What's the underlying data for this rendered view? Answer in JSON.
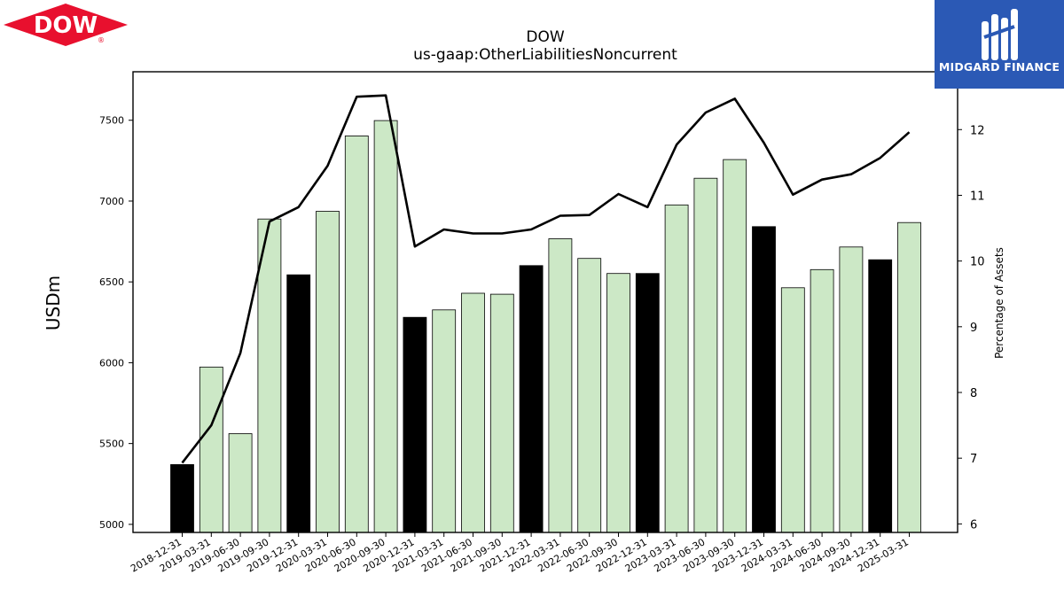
{
  "title": "DOW",
  "subtitle": "us-gaap:OtherLiabilitiesNoncurrent",
  "logos": {
    "left": {
      "text": "DOW",
      "mark": "®",
      "color": "#e8102e"
    },
    "right": {
      "name": "MIDGARD FINANCE",
      "background": "#2b59b5"
    }
  },
  "colors": {
    "bar_q4": "#000000",
    "bar_other": "#cce8c6",
    "line": "#000000"
  },
  "chart_data": {
    "type": "bar",
    "categories": [
      "2018-12-31",
      "2019-03-31",
      "2019-06-30",
      "2019-09-30",
      "2019-12-31",
      "2020-03-31",
      "2020-06-30",
      "2020-09-30",
      "2020-12-31",
      "2021-03-31",
      "2021-06-30",
      "2021-09-30",
      "2021-12-31",
      "2022-03-31",
      "2022-06-30",
      "2022-09-30",
      "2022-12-31",
      "2023-03-31",
      "2023-06-30",
      "2023-09-30",
      "2023-12-31",
      "2024-03-31",
      "2024-06-30",
      "2024-09-30",
      "2024-12-31",
      "2025-03-31"
    ],
    "values": [
      5370,
      5973,
      5561,
      6889,
      6544,
      6937,
      7403,
      7498,
      6281,
      6327,
      6430,
      6424,
      6601,
      6767,
      6645,
      6552,
      6552,
      6976,
      7141,
      7257,
      6842,
      6464,
      6576,
      6716,
      6637,
      6867
    ],
    "highlight": [
      true,
      false,
      false,
      false,
      true,
      false,
      false,
      false,
      true,
      false,
      false,
      false,
      true,
      false,
      false,
      false,
      true,
      false,
      false,
      false,
      true,
      false,
      false,
      false,
      true,
      false
    ],
    "line_series": {
      "axis": "right",
      "values": [
        6.93,
        7.5,
        8.6,
        10.6,
        10.82,
        11.45,
        12.5,
        12.52,
        10.22,
        10.48,
        10.42,
        10.42,
        10.48,
        10.69,
        10.7,
        11.02,
        10.82,
        11.77,
        12.26,
        12.47,
        11.8,
        11.01,
        11.24,
        11.32,
        11.57,
        11.96
      ]
    },
    "ylabel": "USDm",
    "y2label": "Percentage of Assets",
    "ylim": [
      4950,
      7800
    ],
    "y2lim": [
      5.87,
      12.88
    ],
    "yticks": [
      5000,
      5500,
      6000,
      6500,
      7000,
      7500
    ],
    "y2ticks": [
      6,
      7,
      8,
      9,
      10,
      11,
      12
    ],
    "grid": false
  }
}
